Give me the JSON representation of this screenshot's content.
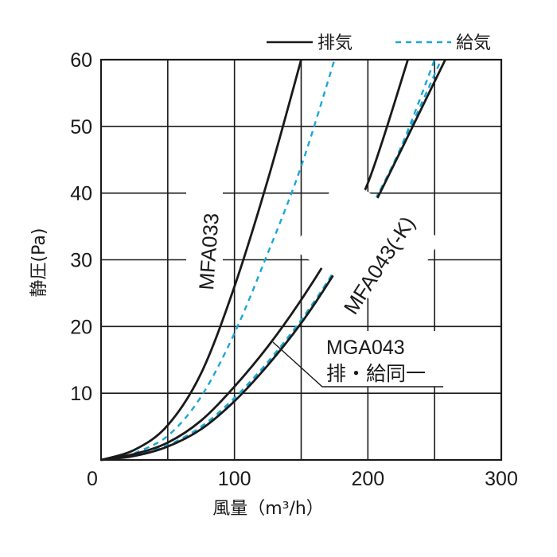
{
  "chart_data": {
    "type": "line",
    "xlabel": "風量（m³/h）",
    "ylabel": "静圧(Pa)",
    "xlim": [
      0,
      300
    ],
    "ylim": [
      0,
      60
    ],
    "x_ticks": [
      "0",
      "100",
      "200",
      "300"
    ],
    "y_ticks": [
      "10",
      "20",
      "30",
      "40",
      "50",
      "60"
    ],
    "grid": true,
    "legend_position": "top-right",
    "legend": [
      {
        "label": "排気",
        "style": "solid",
        "color": "#1a1a1a"
      },
      {
        "label": "給気",
        "style": "dashed",
        "color": "#1aa7d6"
      }
    ],
    "curve_labels": {
      "mfa033": "MFA033",
      "mfa043": "MFA043(-K)",
      "mga043_line1": "MGA043",
      "mga043_line2": "排・給同一"
    },
    "series": [
      {
        "name": "MFA033 排気",
        "style": "solid",
        "color": "#1a1a1a",
        "points": [
          [
            0,
            0
          ],
          [
            25,
            1.5
          ],
          [
            50,
            5.2
          ],
          [
            75,
            13
          ],
          [
            100,
            26
          ],
          [
            125,
            42
          ],
          [
            150,
            60
          ]
        ]
      },
      {
        "name": "MFA033 給気",
        "style": "dashed",
        "color": "#1aa7d6",
        "points": [
          [
            25,
            1.0
          ],
          [
            50,
            3.6
          ],
          [
            75,
            9.5
          ],
          [
            100,
            19
          ],
          [
            125,
            31
          ],
          [
            150,
            44
          ],
          [
            175,
            60
          ]
        ]
      },
      {
        "name": "MFA043(-K) 排気",
        "style": "solid",
        "color": "#1a1a1a",
        "points": [
          [
            0,
            0
          ],
          [
            25,
            0.9
          ],
          [
            50,
            2.6
          ],
          [
            75,
            5.9
          ],
          [
            100,
            11
          ],
          [
            125,
            17
          ],
          [
            150,
            24
          ],
          [
            175,
            32
          ],
          [
            200,
            41.5
          ],
          [
            230,
            60
          ]
        ]
      },
      {
        "name": "MFA043(-K) 給気",
        "style": "dashed",
        "color": "#1aa7d6",
        "points": [
          [
            25,
            0.7
          ],
          [
            50,
            2.2
          ],
          [
            75,
            5
          ],
          [
            100,
            9.3
          ],
          [
            125,
            14.7
          ],
          [
            150,
            21
          ],
          [
            175,
            28.4
          ],
          [
            200,
            37
          ],
          [
            225,
            47
          ],
          [
            250,
            60
          ]
        ]
      },
      {
        "name": "MGA043 排気",
        "style": "solid",
        "color": "#1a1a1a",
        "points": [
          [
            0,
            0
          ],
          [
            25,
            0.6
          ],
          [
            50,
            2.0
          ],
          [
            75,
            4.6
          ],
          [
            100,
            8.8
          ],
          [
            125,
            14.2
          ],
          [
            150,
            20.5
          ],
          [
            175,
            28
          ],
          [
            200,
            36.5
          ],
          [
            225,
            46.5
          ],
          [
            258,
            60
          ]
        ]
      },
      {
        "name": "MGA043 給気",
        "style": "dashed",
        "color": "#1aa7d6",
        "points": [
          [
            25,
            0.6
          ],
          [
            50,
            2.1
          ],
          [
            75,
            4.8
          ],
          [
            100,
            9.0
          ],
          [
            125,
            14.5
          ],
          [
            150,
            20.8
          ],
          [
            175,
            28.2
          ],
          [
            200,
            36.8
          ],
          [
            225,
            46.8
          ],
          [
            255,
            60
          ]
        ]
      }
    ]
  }
}
